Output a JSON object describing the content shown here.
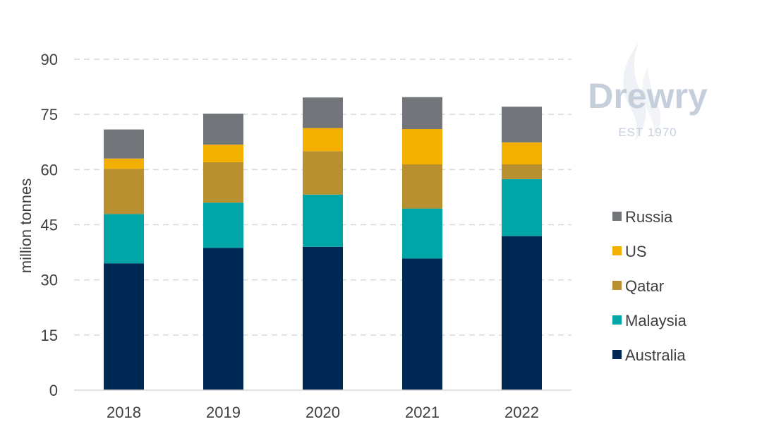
{
  "chart_data": {
    "type": "bar",
    "stacked": true,
    "categories": [
      "2018",
      "2019",
      "2020",
      "2021",
      "2022"
    ],
    "series": [
      {
        "name": "Australia",
        "color": "#002855",
        "values": [
          34.5,
          38.7,
          39.0,
          35.8,
          41.9
        ]
      },
      {
        "name": "Malaysia",
        "color": "#00a5a8",
        "values": [
          13.4,
          12.3,
          14.2,
          13.6,
          15.5
        ]
      },
      {
        "name": "Qatar",
        "color": "#b8902f",
        "values": [
          12.3,
          11.0,
          11.8,
          12.0,
          4.0
        ]
      },
      {
        "name": "US",
        "color": "#f3b000",
        "values": [
          2.8,
          4.8,
          6.3,
          9.6,
          6.0
        ]
      },
      {
        "name": "Russia",
        "color": "#72767a",
        "values": [
          7.9,
          8.4,
          8.3,
          8.7,
          9.7
        ]
      }
    ],
    "ylabel": "million tonnes",
    "xlabel": "",
    "ylim": [
      0,
      90
    ],
    "yticks": [
      "0",
      "15",
      "30",
      "45",
      "60",
      "75",
      "90"
    ],
    "grid": true,
    "legend_position": "right",
    "legend_order": [
      "Russia",
      "US",
      "Qatar",
      "Malaysia",
      "Australia"
    ]
  },
  "logo": {
    "name": "Drewry",
    "tagline": "EST 1970"
  }
}
